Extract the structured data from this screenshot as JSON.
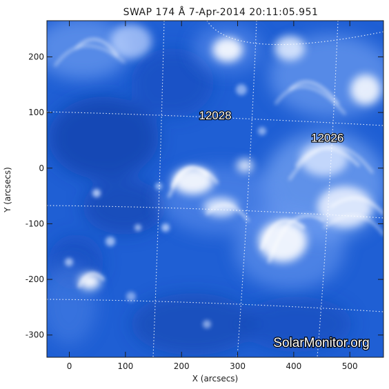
{
  "title": "SWAP 174 Å  7-Apr-2014 20:11:05.951",
  "axes": {
    "xlabel": "X (arcsecs)",
    "ylabel": "Y (arcsecs)",
    "x_ticks": [
      "0",
      "100",
      "200",
      "300",
      "400",
      "500"
    ],
    "y_ticks": [
      "200",
      "100",
      "0",
      "-100",
      "-200",
      "-300"
    ],
    "xlim": [
      -40,
      560
    ],
    "ylim": [
      -340,
      265
    ]
  },
  "regions": [
    {
      "label": "12028",
      "x": 260,
      "y": 95
    },
    {
      "label": "12026",
      "x": 460,
      "y": 55
    }
  ],
  "watermark": "SolarMonitor.org",
  "colors": {
    "base": "#1f5fd4",
    "dark": "#0e3fa8",
    "bright": "#ffffff",
    "grid": "#ffffff"
  }
}
